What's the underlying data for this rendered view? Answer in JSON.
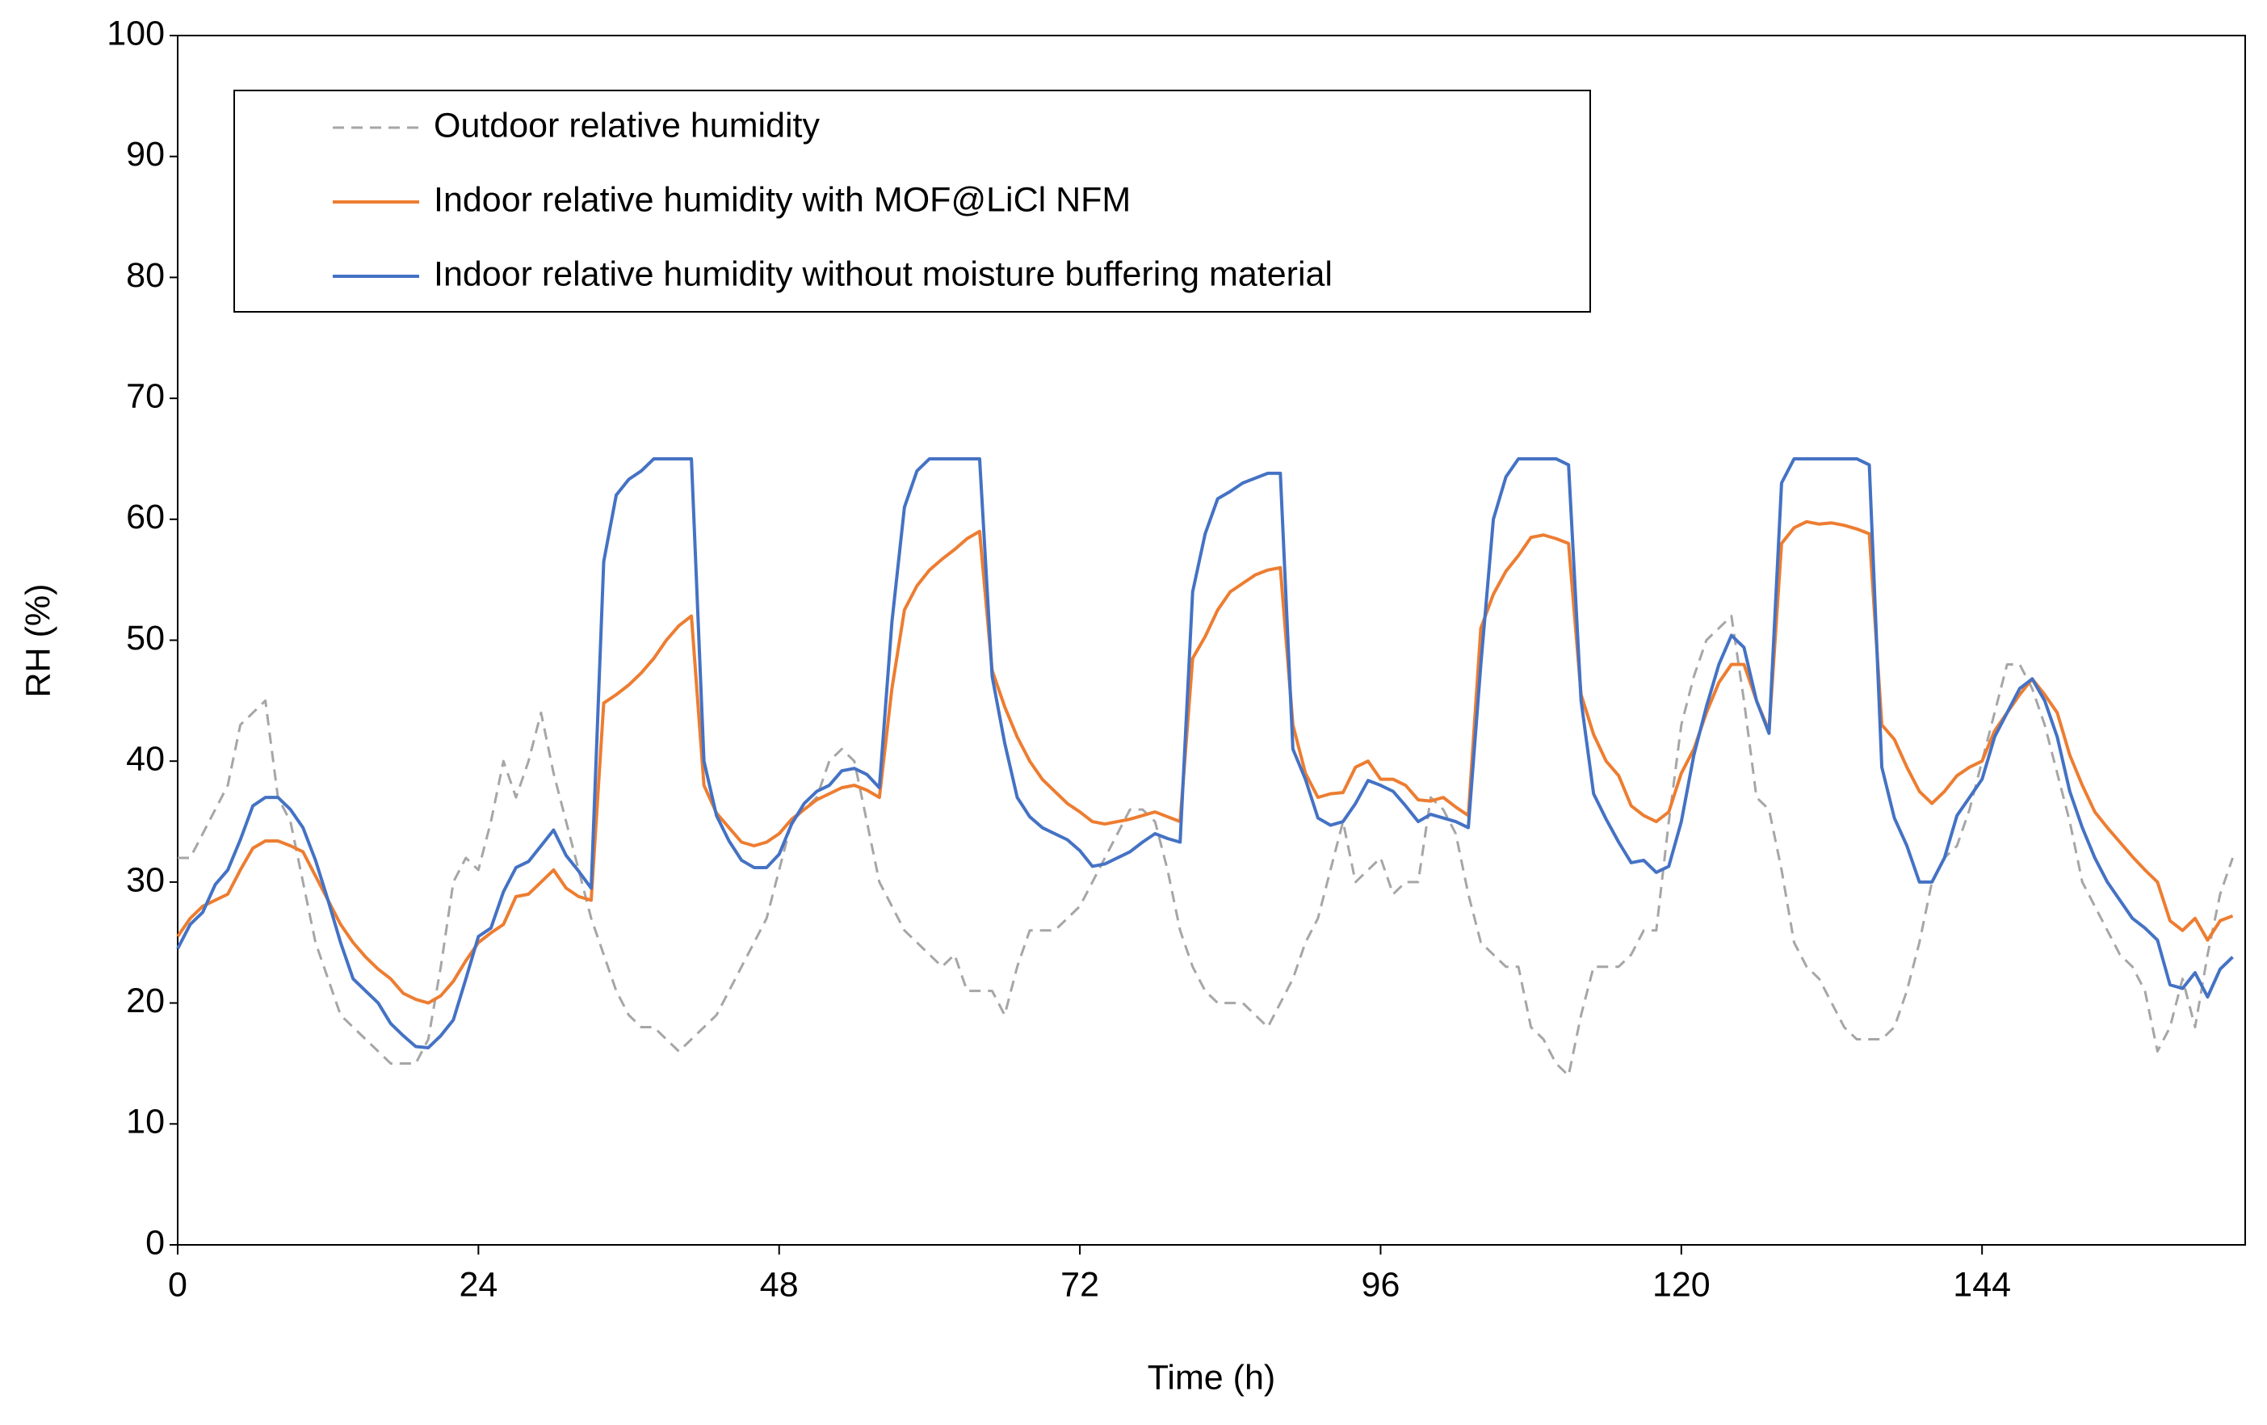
{
  "chart_data": {
    "type": "line",
    "xlabel": "Time (h)",
    "ylabel": "RH (%)",
    "xlim": [
      0,
      165
    ],
    "xticks": [
      0,
      24,
      48,
      72,
      96,
      120,
      144
    ],
    "ylim": [
      0,
      100
    ],
    "yticks": [
      0,
      10,
      20,
      30,
      40,
      50,
      60,
      70,
      80,
      90,
      100
    ],
    "grid": false,
    "legend": "upper left",
    "x": [
      0,
      1,
      2,
      3,
      4,
      5,
      6,
      7,
      8,
      9,
      10,
      11,
      12,
      13,
      14,
      15,
      16,
      17,
      18,
      19,
      20,
      21,
      22,
      23,
      24,
      25,
      26,
      27,
      28,
      29,
      30,
      31,
      32,
      33,
      34,
      35,
      36,
      37,
      38,
      39,
      40,
      41,
      42,
      43,
      44,
      45,
      46,
      47,
      48,
      49,
      50,
      51,
      52,
      53,
      54,
      55,
      56,
      57,
      58,
      59,
      60,
      61,
      62,
      63,
      64,
      65,
      66,
      67,
      68,
      69,
      70,
      71,
      72,
      73,
      74,
      75,
      76,
      77,
      78,
      79,
      80,
      81,
      82,
      83,
      84,
      85,
      86,
      87,
      88,
      89,
      90,
      91,
      92,
      93,
      94,
      95,
      96,
      97,
      98,
      99,
      100,
      101,
      102,
      103,
      104,
      105,
      106,
      107,
      108,
      109,
      110,
      111,
      112,
      113,
      114,
      115,
      116,
      117,
      118,
      119,
      120,
      121,
      122,
      123,
      124,
      125,
      126,
      127,
      128,
      129,
      130,
      131,
      132,
      133,
      134,
      135,
      136,
      137,
      138,
      139,
      140,
      141,
      142,
      143,
      144,
      145,
      146,
      147,
      148,
      149,
      150,
      151,
      152,
      153,
      154,
      155,
      156,
      157,
      158,
      159,
      160,
      161,
      162,
      163,
      164
    ],
    "series": [
      {
        "name": "Outdoor relative humidity",
        "color": "#a6a6a6",
        "style": "dashed",
        "values": [
          32,
          32,
          34,
          36,
          38,
          43,
          44,
          45,
          37,
          35,
          30,
          25,
          22,
          19,
          18,
          17,
          16,
          15,
          15,
          15,
          17,
          23,
          30,
          32,
          31,
          35,
          40,
          37,
          40,
          44,
          39,
          35,
          31,
          27,
          24,
          21,
          19,
          18,
          18,
          17,
          16,
          17,
          18,
          19,
          21,
          23,
          25,
          27,
          31,
          35,
          36,
          37,
          40,
          41,
          40,
          35,
          30,
          28,
          26,
          25,
          24,
          23,
          24,
          21,
          21,
          21,
          19,
          23,
          26,
          26,
          26,
          27,
          28,
          30,
          32,
          34,
          36,
          36,
          35,
          31,
          26,
          23,
          21,
          20,
          20,
          20,
          19,
          18,
          20,
          22,
          25,
          27,
          31,
          35,
          30,
          31,
          32,
          29,
          30,
          30,
          37,
          36,
          34,
          29,
          25,
          24,
          23,
          23,
          18,
          17,
          15,
          14,
          19,
          23,
          23,
          23,
          24,
          26,
          26,
          35,
          43,
          47,
          50,
          51,
          52,
          45,
          37,
          36,
          31,
          25,
          23,
          22,
          20,
          18,
          17,
          17,
          17,
          18,
          21,
          25,
          30,
          32,
          33,
          36,
          40,
          44,
          48,
          48,
          46,
          43,
          39,
          35,
          30,
          28,
          26,
          24,
          23,
          21,
          16,
          18,
          22,
          18,
          24,
          29,
          32
        ]
      },
      {
        "name": "Indoor relative humidity with MOF@LiCl NFM",
        "color": "#ed7d31",
        "style": "solid",
        "values": [
          25.5,
          27,
          28,
          28.5,
          29,
          31,
          32.8,
          33.4,
          33.4,
          33,
          32.5,
          30.5,
          28.5,
          26.5,
          25,
          23.8,
          22.8,
          22,
          20.8,
          20.3,
          20,
          20.6,
          21.8,
          23.5,
          25,
          25.8,
          26.5,
          28.8,
          29,
          30,
          31,
          29.5,
          28.8,
          28.5,
          44.8,
          45.5,
          46.3,
          47.3,
          48.5,
          50,
          51.2,
          52,
          38,
          35.7,
          34.5,
          33.3,
          33,
          33.3,
          34,
          35.2,
          36,
          36.8,
          37.3,
          37.8,
          38,
          37.6,
          37,
          46,
          52.5,
          54.5,
          55.8,
          56.7,
          57.5,
          58.4,
          59,
          47.5,
          44.5,
          42,
          40,
          38.5,
          37.5,
          36.5,
          35.8,
          35,
          34.8,
          35,
          35.2,
          35.5,
          35.8,
          35.4,
          35,
          48.5,
          50.3,
          52.5,
          54,
          54.7,
          55.4,
          55.8,
          56,
          43,
          39,
          37,
          37.3,
          37.4,
          39.5,
          40,
          38.5,
          38.5,
          38,
          36.8,
          36.7,
          37,
          36.2,
          35.5,
          51,
          53.8,
          55.7,
          57,
          58.5,
          58.7,
          58.4,
          58,
          45.5,
          42.2,
          40,
          38.8,
          36.3,
          35.5,
          35,
          35.8,
          39,
          41,
          44,
          46.5,
          48,
          48,
          45,
          42.5,
          58,
          59.3,
          59.8,
          59.6,
          59.7,
          59.5,
          59.2,
          58.8,
          43,
          41.8,
          39.5,
          37.5,
          36.5,
          37.5,
          38.8,
          39.5,
          40,
          42.5,
          44,
          45.5,
          46.8,
          45.5,
          44,
          40.5,
          38,
          35.8,
          34.5,
          33.3,
          32.1,
          31,
          30,
          26.8,
          26,
          27,
          25.2,
          26.8,
          27.2
        ]
      },
      {
        "name": "Indoor relative humidity without moisture buffering material",
        "color": "#4472c4",
        "style": "solid",
        "values": [
          24.5,
          26.5,
          27.5,
          29.8,
          31,
          33.5,
          36.3,
          37,
          37,
          36,
          34.5,
          31.8,
          28.5,
          25,
          22,
          21,
          20,
          18.3,
          17.3,
          16.4,
          16.3,
          17.3,
          18.6,
          22,
          25.5,
          26.2,
          29.2,
          31.2,
          31.7,
          33,
          34.3,
          32.2,
          30.9,
          29.5,
          56.5,
          62,
          63.3,
          64,
          65,
          65,
          65,
          65,
          40,
          35.5,
          33.4,
          31.8,
          31.2,
          31.2,
          32.3,
          34.8,
          36.5,
          37.5,
          38,
          39.2,
          39.4,
          38.9,
          37.8,
          51.5,
          61,
          64,
          65,
          65,
          65,
          65,
          65,
          47,
          41.5,
          37,
          35.4,
          34.5,
          34,
          33.5,
          32.6,
          31.3,
          31.5,
          32,
          32.5,
          33.3,
          34,
          33.6,
          33.3,
          54,
          58.8,
          61.7,
          62.3,
          63,
          63.4,
          63.8,
          63.8,
          41,
          38.5,
          35.3,
          34.7,
          35,
          36.5,
          38.4,
          38,
          37.5,
          36.3,
          35,
          35.6,
          35.3,
          35,
          34.5,
          48,
          60,
          63.5,
          65,
          65,
          65,
          65,
          64.5,
          45,
          37.3,
          35.2,
          33.3,
          31.6,
          31.8,
          30.8,
          31.3,
          35,
          40.5,
          44.5,
          48,
          50.4,
          49.4,
          45,
          42.3,
          63,
          65,
          65,
          65,
          65,
          65,
          65,
          64.5,
          39.5,
          35.3,
          33,
          30,
          30,
          32,
          35.5,
          37,
          38.5,
          42,
          44,
          46,
          46.8,
          45,
          42,
          37.5,
          34.5,
          32,
          30,
          28.5,
          27,
          26.2,
          25.2,
          21.5,
          21.2,
          22.5,
          20.5,
          22.8,
          23.8
        ]
      }
    ]
  }
}
